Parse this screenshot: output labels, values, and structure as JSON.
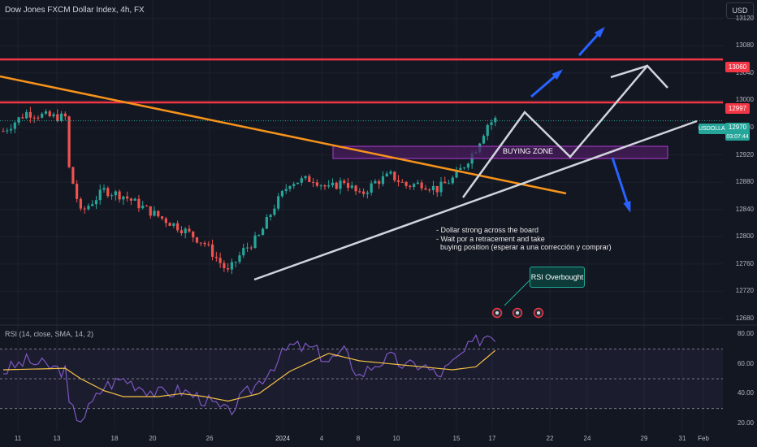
{
  "symbol_title": "Dow Jones FXCM Dollar Index, 4h, FX",
  "currency_button": "USD",
  "rsi_title": "RSI (14, close, SMA, 14, 2)",
  "annotations": {
    "buying_zone": "BUYING ZONE",
    "note": "- Dollar strong across the board\n- Wait por a retracement and take\n  buying position (esperar a una corrección y comprar)",
    "rsi_callout": "RSI Overbought"
  },
  "price_tags": {
    "resistance_top": "13060",
    "resistance_mid": "12997",
    "current_symbol": "USDOLLAR",
    "current_price": "12970",
    "countdown": "03:07:44"
  },
  "colors": {
    "background": "#131722",
    "bull": "#26a69a",
    "bear": "#ef5350",
    "resistance": "#f23645",
    "trendline_down": "#f7931a",
    "trendline_up": "#d1d4dc",
    "zone_fill": "#4a1d5e",
    "zone_border": "#b23bd6",
    "arrow": "#2962ff",
    "rsi_line": "#7e57c2",
    "rsi_ma": "#f5c146"
  },
  "chart_data": [
    {
      "type": "candlestick",
      "timeframe": "4h",
      "x_labels": [
        "11",
        "13",
        "18",
        "20",
        "26",
        "2024",
        "4",
        "8",
        "10",
        "15",
        "17",
        "22",
        "24",
        "29",
        "31",
        "Feb"
      ],
      "y_ticks": [
        12680,
        12720,
        12760,
        12800,
        12840,
        12880,
        12920,
        12960,
        13000,
        13040,
        13080,
        13120
      ],
      "ylim": [
        12680,
        13140
      ],
      "approx_close_path": [
        [
          0,
          12955
        ],
        [
          6,
          12982
        ],
        [
          12,
          12976
        ],
        [
          16,
          12975
        ],
        [
          17,
          12900
        ],
        [
          20,
          12835
        ],
        [
          26,
          12868
        ],
        [
          31,
          12860
        ],
        [
          40,
          12830
        ],
        [
          46,
          12812
        ],
        [
          52,
          12790
        ],
        [
          56,
          12762
        ],
        [
          58,
          12748
        ],
        [
          62,
          12780
        ],
        [
          66,
          12800
        ],
        [
          70,
          12845
        ],
        [
          74,
          12880
        ],
        [
          80,
          12885
        ],
        [
          84,
          12870
        ],
        [
          88,
          12882
        ],
        [
          92,
          12860
        ],
        [
          96,
          12880
        ],
        [
          100,
          12890
        ],
        [
          104,
          12875
        ],
        [
          108,
          12878
        ],
        [
          112,
          12870
        ],
        [
          116,
          12885
        ],
        [
          119,
          12905
        ],
        [
          122,
          12930
        ],
        [
          125,
          12965
        ],
        [
          127,
          12972
        ]
      ],
      "levels": [
        13060,
        12997
      ],
      "current_price": 12970
    },
    {
      "type": "line",
      "title": "RSI (14, close, SMA, 14, 2)",
      "y_ticks": [
        20,
        40,
        60,
        80
      ],
      "bands": [
        30,
        50,
        70
      ],
      "approx_rsi": [
        [
          0,
          55
        ],
        [
          6,
          62
        ],
        [
          12,
          58
        ],
        [
          16,
          55
        ],
        [
          17,
          32
        ],
        [
          20,
          22
        ],
        [
          26,
          45
        ],
        [
          31,
          50
        ],
        [
          40,
          40
        ],
        [
          46,
          42
        ],
        [
          52,
          36
        ],
        [
          56,
          30
        ],
        [
          58,
          27
        ],
        [
          62,
          38
        ],
        [
          66,
          48
        ],
        [
          70,
          60
        ],
        [
          74,
          72
        ],
        [
          80,
          70
        ],
        [
          84,
          62
        ],
        [
          88,
          68
        ],
        [
          92,
          52
        ],
        [
          96,
          60
        ],
        [
          100,
          64
        ],
        [
          104,
          58
        ],
        [
          108,
          60
        ],
        [
          112,
          52
        ],
        [
          116,
          60
        ],
        [
          119,
          68
        ],
        [
          122,
          75
        ],
        [
          125,
          80
        ],
        [
          127,
          79
        ]
      ],
      "approx_rsi_ma": [
        [
          0,
          56
        ],
        [
          16,
          57
        ],
        [
          20,
          50
        ],
        [
          26,
          42
        ],
        [
          31,
          38
        ],
        [
          40,
          38
        ],
        [
          46,
          40
        ],
        [
          52,
          38
        ],
        [
          58,
          35
        ],
        [
          66,
          40
        ],
        [
          74,
          55
        ],
        [
          84,
          67
        ],
        [
          92,
          62
        ],
        [
          100,
          60
        ],
        [
          108,
          58
        ],
        [
          116,
          56
        ],
        [
          122,
          58
        ],
        [
          127,
          69
        ]
      ]
    }
  ]
}
